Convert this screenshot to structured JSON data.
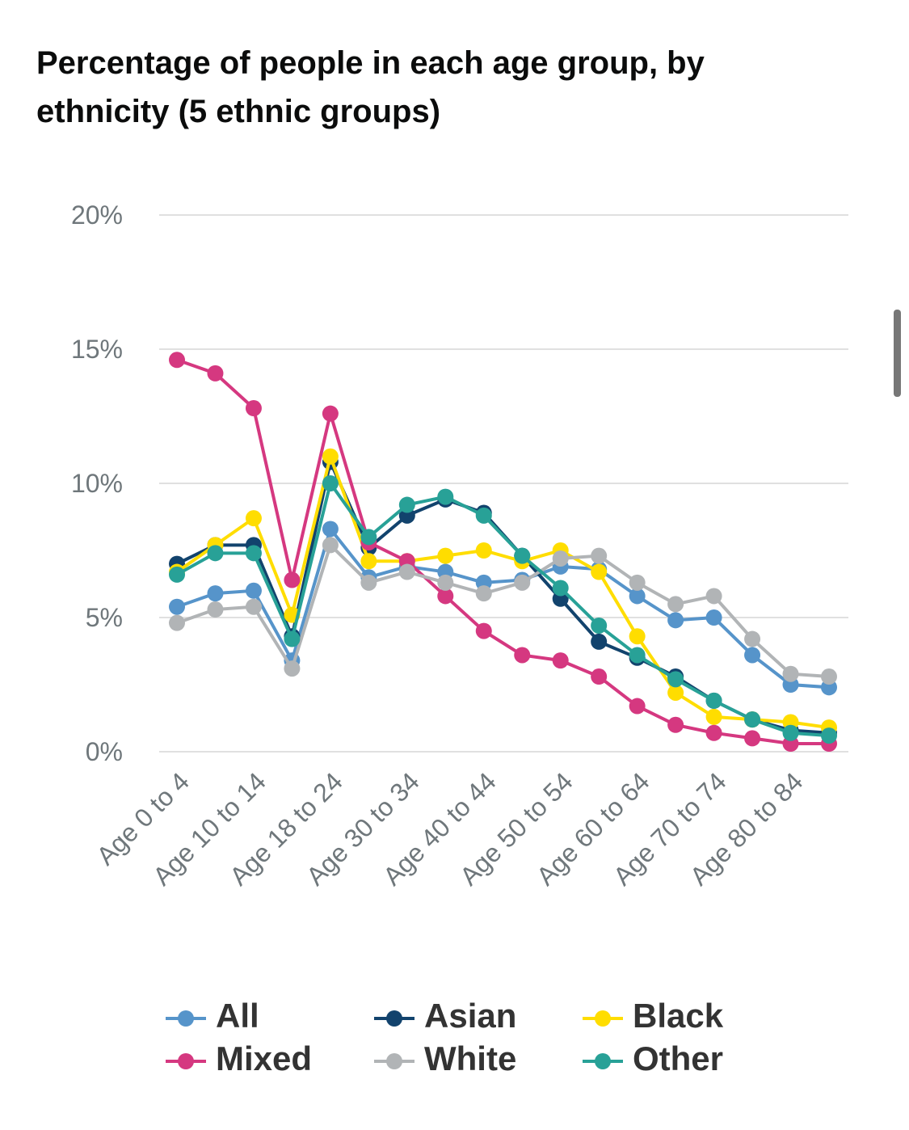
{
  "chart_data": {
    "type": "line",
    "title": "Percentage of people in each age group, by ethnicity (5 ethnic groups)",
    "categories": [
      "Age 0 to 4",
      null,
      "Age 10 to 14",
      null,
      "Age 18 to 24",
      null,
      "Age 30 to 34",
      null,
      "Age 40 to 44",
      null,
      "Age 50 to 54",
      null,
      "Age 60 to 64",
      null,
      "Age 70 to 74",
      null,
      "Age 80 to 84",
      null
    ],
    "series": [
      {
        "name": "All",
        "color": "#5694ca",
        "values": [
          5.4,
          5.9,
          6.0,
          3.4,
          8.3,
          6.5,
          6.9,
          6.7,
          6.3,
          6.4,
          6.9,
          6.8,
          5.8,
          4.9,
          5.0,
          3.6,
          2.5,
          2.4
        ]
      },
      {
        "name": "Asian",
        "color": "#12436d",
        "values": [
          7.0,
          7.7,
          7.7,
          4.3,
          10.8,
          7.6,
          8.8,
          9.4,
          8.9,
          7.3,
          5.7,
          4.1,
          3.5,
          2.8,
          1.9,
          1.2,
          0.8,
          0.7
        ]
      },
      {
        "name": "Black",
        "color": "#ffdd00",
        "values": [
          6.7,
          7.7,
          8.7,
          5.1,
          11.0,
          7.1,
          7.1,
          7.3,
          7.5,
          7.1,
          7.5,
          6.7,
          4.3,
          2.2,
          1.3,
          1.2,
          1.1,
          0.9
        ]
      },
      {
        "name": "Mixed",
        "color": "#d53880",
        "values": [
          14.6,
          14.1,
          12.8,
          6.4,
          12.6,
          7.8,
          7.1,
          5.8,
          4.5,
          3.6,
          3.4,
          2.8,
          1.7,
          1.0,
          0.7,
          0.5,
          0.3,
          0.3
        ]
      },
      {
        "name": "White",
        "color": "#b1b4b6",
        "values": [
          4.8,
          5.3,
          5.4,
          3.1,
          7.7,
          6.3,
          6.7,
          6.3,
          5.9,
          6.3,
          7.2,
          7.3,
          6.3,
          5.5,
          5.8,
          4.2,
          2.9,
          2.8
        ]
      },
      {
        "name": "Other",
        "color": "#28a197",
        "values": [
          6.6,
          7.4,
          7.4,
          4.2,
          10.0,
          8.0,
          9.2,
          9.5,
          8.8,
          7.3,
          6.1,
          4.7,
          3.6,
          2.7,
          1.9,
          1.2,
          0.7,
          0.6
        ]
      }
    ],
    "ylim": [
      0,
      20
    ],
    "yticks": [
      {
        "value": 0,
        "label": "0%"
      },
      {
        "value": 5,
        "label": "5%"
      },
      {
        "value": 10,
        "label": "10%"
      },
      {
        "value": 15,
        "label": "15%"
      },
      {
        "value": 20,
        "label": "20%"
      }
    ],
    "grid": true
  }
}
